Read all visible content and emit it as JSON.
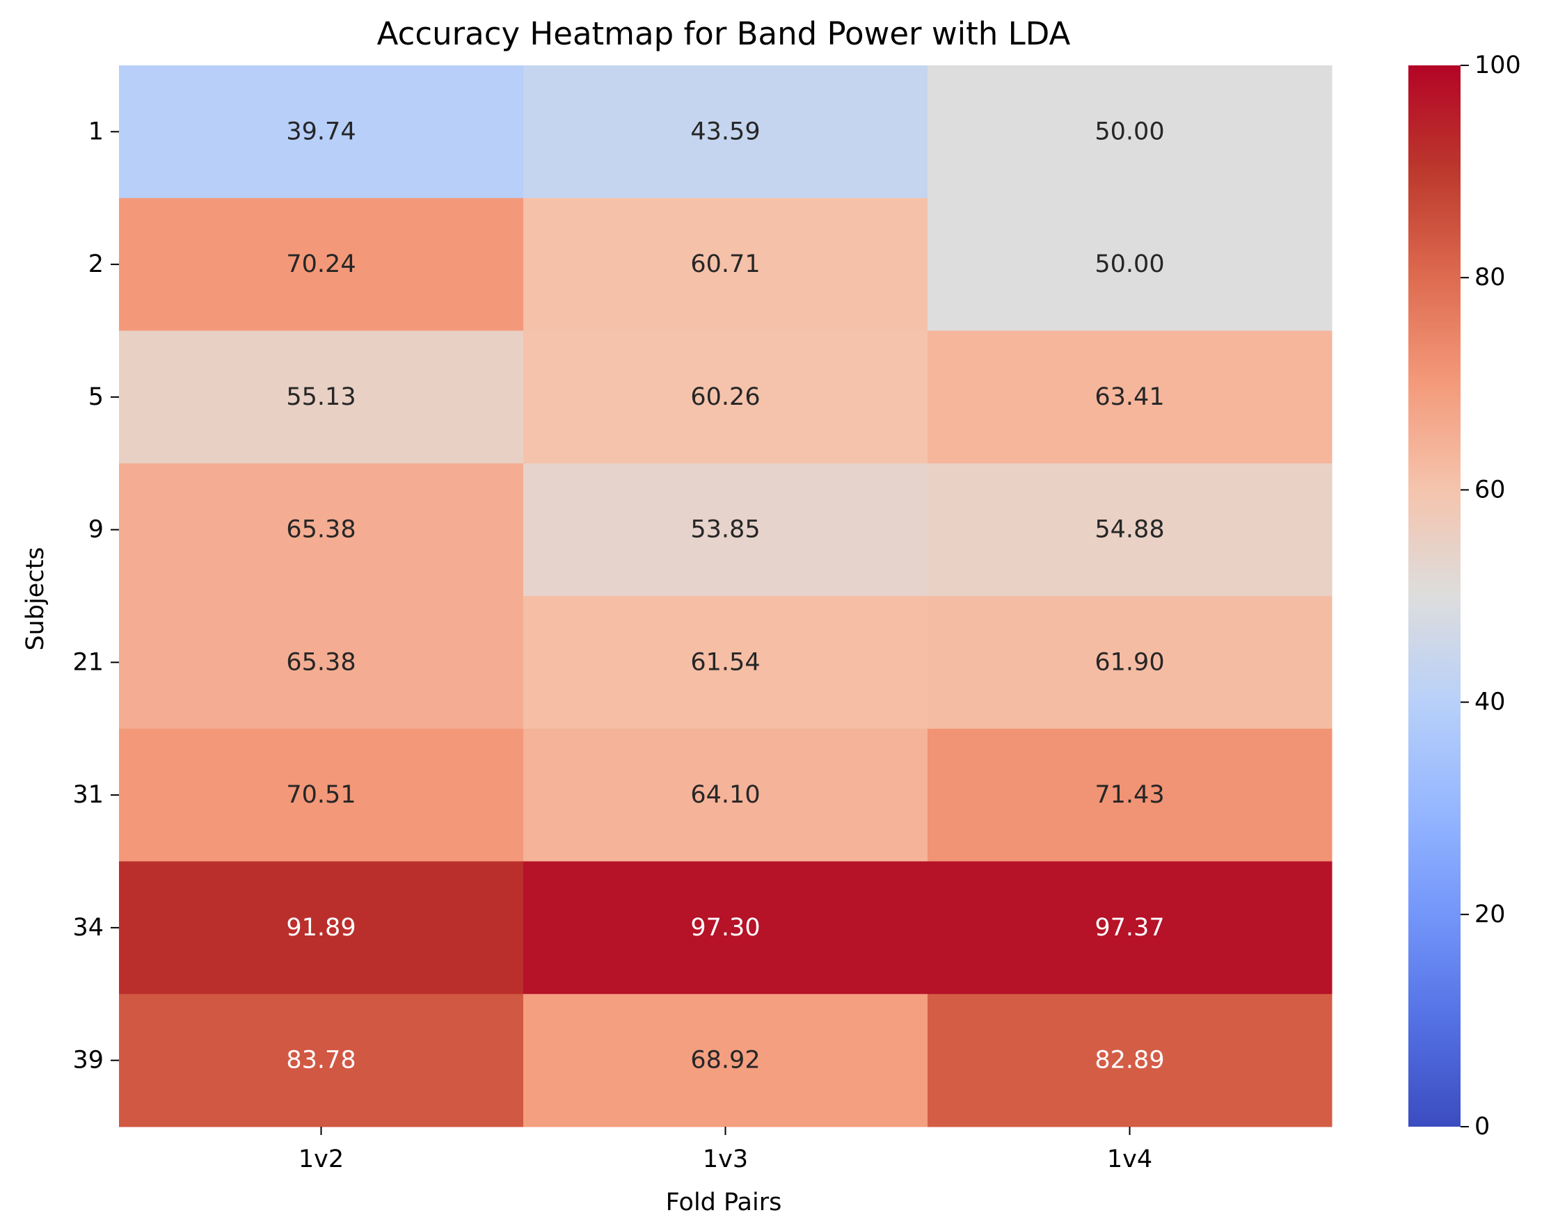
{
  "chart_data": {
    "type": "heatmap",
    "title": "Accuracy Heatmap for Band Power with LDA",
    "xlabel": "Fold Pairs",
    "ylabel": "Subjects",
    "x_categories": [
      "1v2",
      "1v3",
      "1v4"
    ],
    "y_categories": [
      "1",
      "2",
      "5",
      "9",
      "21",
      "31",
      "34",
      "39"
    ],
    "values": [
      [
        39.74,
        43.59,
        50.0
      ],
      [
        70.24,
        60.71,
        50.0
      ],
      [
        55.13,
        60.26,
        63.41
      ],
      [
        65.38,
        53.85,
        54.88
      ],
      [
        65.38,
        61.54,
        61.9
      ],
      [
        70.51,
        64.1,
        71.43
      ],
      [
        91.89,
        97.3,
        97.37
      ],
      [
        83.78,
        68.92,
        82.89
      ]
    ],
    "value_format_decimals": 2,
    "colormap": "coolwarm",
    "vmin": 0,
    "vmax": 100,
    "colorbar_ticks": [
      0,
      20,
      40,
      60,
      80,
      100
    ],
    "colorbar_position": "right",
    "colors": {
      "low": "#3b4cc0",
      "mid": "#dddddd",
      "high": "#b40426",
      "text_dark": "#262626",
      "text_light": "#ffffff",
      "axis": "#000000"
    }
  }
}
